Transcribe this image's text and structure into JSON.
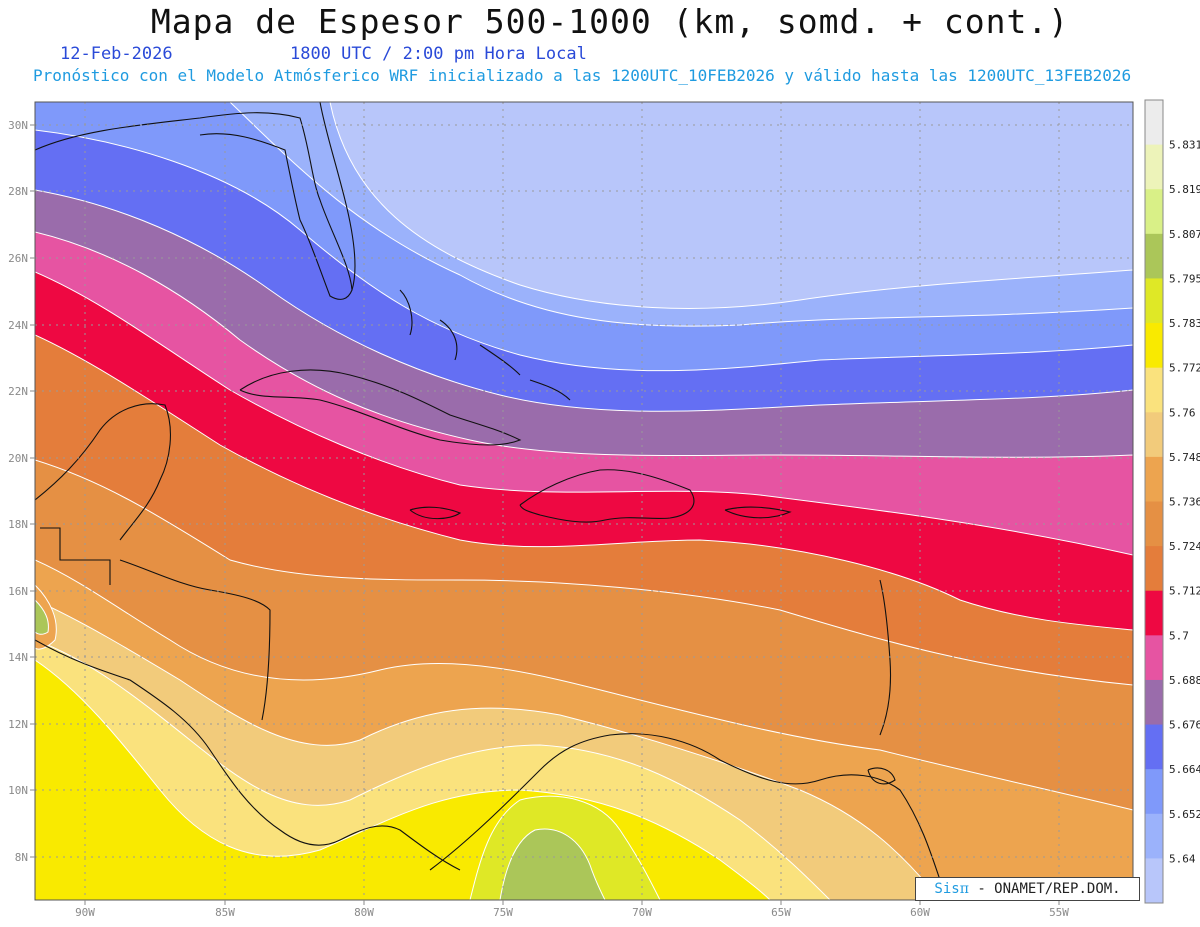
{
  "header": {
    "title": "Mapa de Espesor 500-1000 (km, somd. + cont.)",
    "date": "12-Feb-2026",
    "utc": "1800 UTC / 2:00 pm Hora Local",
    "forecast": "Pronóstico con el Modelo Atmósferico WRF inicializado a las 1200UTC_10FEB2026 y válido hasta las  1200UTC_13FEB2026"
  },
  "lat_labels": [
    "30N",
    "28N",
    "26N",
    "24N",
    "22N",
    "20N",
    "18N",
    "16N",
    "14N",
    "12N",
    "10N",
    "8N"
  ],
  "lon_labels": [
    "90W",
    "85W",
    "80W",
    "75W",
    "70W",
    "65W",
    "60W",
    "55W"
  ],
  "colorbar": {
    "values": [
      "5.64",
      "5.652",
      "5.664",
      "5.676",
      "5.688",
      "5.7",
      "5.712",
      "5.724",
      "5.736",
      "5.748",
      "5.76",
      "5.772",
      "5.783",
      "5.795",
      "5.807",
      "5.819",
      "5.831"
    ],
    "colors": [
      "#b8c6fa",
      "#9bb2fb",
      "#7f99fa",
      "#646ff3",
      "#9a6cab",
      "#e654a2",
      "#ee0842",
      "#e47d3b",
      "#e59044",
      "#eda44f",
      "#f2cb7b",
      "#fae27d",
      "#f9ea00",
      "#dfe826",
      "#abc659",
      "#d9f087",
      "#edf3b9",
      "#ececec"
    ]
  },
  "credit": {
    "sis": "Sis",
    "pi": "π",
    "rest": " - ONAMET/REP.DOM."
  }
}
